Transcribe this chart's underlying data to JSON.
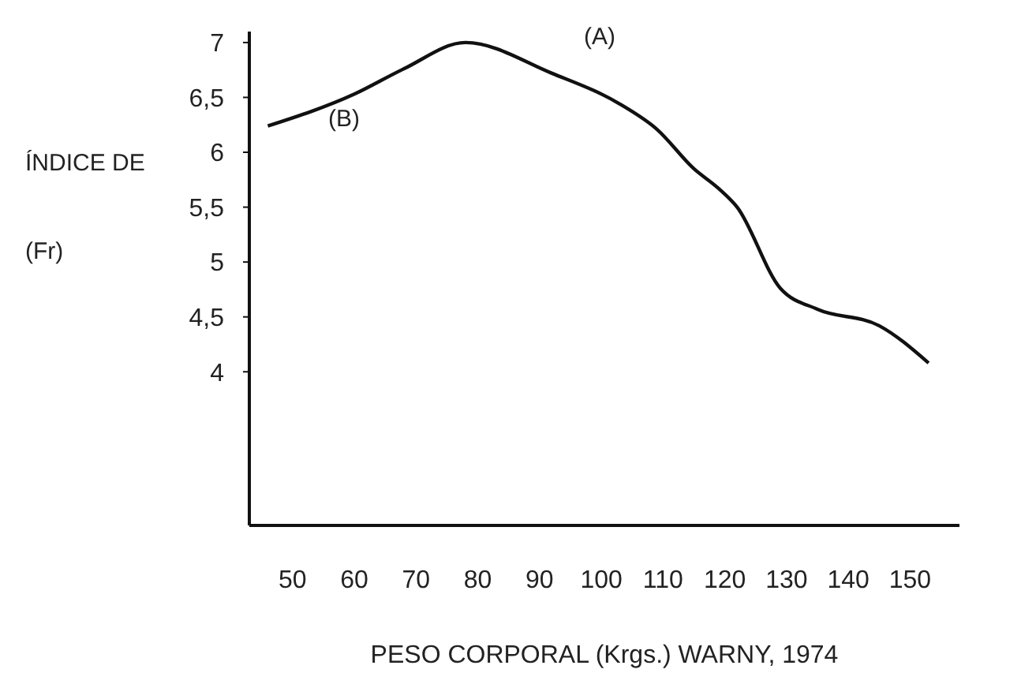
{
  "chart_data": {
    "type": "line",
    "xlabel": "PESO CORPORAL (Krgs.) WARNY, 1974",
    "ylabel": "ÍNDICE DE\n(Fr)",
    "x": [
      46,
      60,
      68,
      78,
      92,
      103,
      109,
      115,
      119,
      122,
      129,
      135,
      145,
      153
    ],
    "series": [
      {
        "color": "#111111",
        "values": [
          6.24,
          6.53,
          6.76,
          7.0,
          6.72,
          6.44,
          6.21,
          5.85,
          5.67,
          5.5,
          4.76,
          4.57,
          4.42,
          4.08
        ]
      }
    ],
    "xlim": [
      43,
      158
    ],
    "xticks": [
      50,
      60,
      70,
      80,
      90,
      100,
      110,
      120,
      130,
      140,
      150
    ],
    "ylim": [
      2.6,
      7.1
    ],
    "yticks": [
      {
        "value": 4,
        "label": "4"
      },
      {
        "value": 4.5,
        "label": "4,5"
      },
      {
        "value": 5,
        "label": "5"
      },
      {
        "value": 5.5,
        "label": "5,5"
      },
      {
        "value": 6,
        "label": "6"
      },
      {
        "value": 6.5,
        "label": "6,5"
      },
      {
        "value": 7,
        "label": "7"
      }
    ],
    "annotations": [
      "(A)",
      "(B)"
    ],
    "grid": false,
    "legend": false,
    "marker": "none",
    "line_style": "solid"
  }
}
